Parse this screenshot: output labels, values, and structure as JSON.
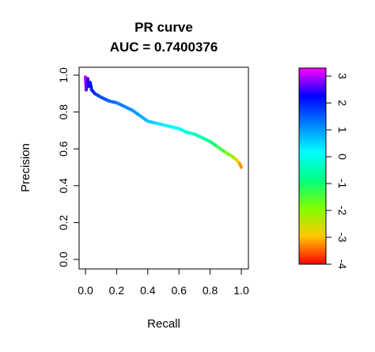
{
  "chart_data": {
    "type": "line",
    "title": [
      "PR curve",
      "AUC = 0.7400376"
    ],
    "xlabel": "Recall",
    "ylabel": "Precision",
    "xlim": [
      0,
      1
    ],
    "ylim": [
      0,
      1
    ],
    "x_ticks": [
      "0.0",
      "0.2",
      "0.4",
      "0.6",
      "0.8",
      "1.0"
    ],
    "y_ticks": [
      "0.0",
      "0.2",
      "0.4",
      "0.6",
      "0.8",
      "1.0"
    ],
    "grid": false,
    "legend": "colorbar-right",
    "series": [
      {
        "points": [
          [
            0.0,
            0.99,
            3.2
          ],
          [
            0.005,
            0.92,
            2.8
          ],
          [
            0.01,
            0.95,
            2.5
          ],
          [
            0.015,
            0.98,
            2.6
          ],
          [
            0.02,
            0.94,
            2.3
          ],
          [
            0.03,
            0.96,
            2.2
          ],
          [
            0.04,
            0.92,
            2.1
          ],
          [
            0.06,
            0.9,
            1.9
          ],
          [
            0.08,
            0.89,
            1.8
          ],
          [
            0.1,
            0.88,
            1.7
          ],
          [
            0.15,
            0.86,
            1.5
          ],
          [
            0.2,
            0.85,
            1.3
          ],
          [
            0.25,
            0.83,
            1.2
          ],
          [
            0.3,
            0.81,
            1.1
          ],
          [
            0.35,
            0.78,
            0.9
          ],
          [
            0.4,
            0.75,
            0.7
          ],
          [
            0.45,
            0.74,
            0.5
          ],
          [
            0.5,
            0.73,
            0.35
          ],
          [
            0.55,
            0.72,
            0.2
          ],
          [
            0.6,
            0.71,
            0.05
          ],
          [
            0.65,
            0.69,
            -0.1
          ],
          [
            0.7,
            0.68,
            -0.3
          ],
          [
            0.75,
            0.66,
            -0.5
          ],
          [
            0.8,
            0.64,
            -0.8
          ],
          [
            0.85,
            0.61,
            -1.2
          ],
          [
            0.9,
            0.58,
            -1.6
          ],
          [
            0.94,
            0.56,
            -2.1
          ],
          [
            0.97,
            0.54,
            -2.6
          ],
          [
            0.99,
            0.52,
            -3.0
          ],
          [
            1.0,
            0.5,
            -3.4
          ]
        ]
      }
    ],
    "colorbar": {
      "min": -4,
      "max": 3.3,
      "ticks": [
        "3",
        "2",
        "1",
        "0",
        "-1",
        "-2",
        "-3",
        "-4"
      ],
      "tick_values": [
        3,
        2,
        1,
        0,
        -1,
        -2,
        -3,
        -4
      ],
      "colors": [
        "#ff0000",
        "#ffc800",
        "#80ff00",
        "#00ff80",
        "#00ffff",
        "#0080ff",
        "#0000ff",
        "#ff00ff"
      ]
    },
    "colors": {
      "axis": "#000000"
    }
  }
}
